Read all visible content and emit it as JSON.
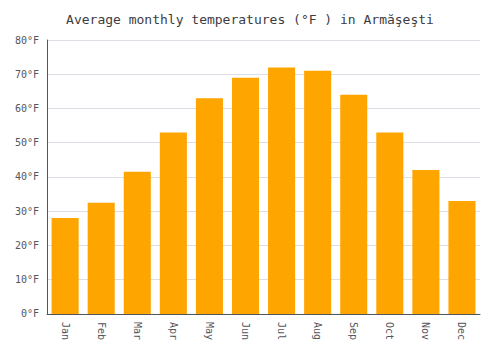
{
  "chart_data": {
    "type": "bar",
    "title": "Average monthly temperatures (°F ) in Armăşeşti",
    "categories": [
      "Jan",
      "Feb",
      "Mar",
      "Apr",
      "May",
      "Jun",
      "Jul",
      "Aug",
      "Sep",
      "Oct",
      "Nov",
      "Dec"
    ],
    "values": [
      28.0,
      32.5,
      41.5,
      53.0,
      63.0,
      69.0,
      72.0,
      71.0,
      64.0,
      53.0,
      42.0,
      33.0
    ],
    "color": "#FFA500",
    "ylim": [
      0,
      80
    ],
    "yticks": [
      {
        "value": 0,
        "label": "0°F"
      },
      {
        "value": 10,
        "label": "10°F"
      },
      {
        "value": 20,
        "label": "20°F"
      },
      {
        "value": 30,
        "label": "30°F"
      },
      {
        "value": 40,
        "label": "40°F"
      },
      {
        "value": 50,
        "label": "50°F"
      },
      {
        "value": 60,
        "label": "60°F"
      },
      {
        "value": 70,
        "label": "70°F"
      },
      {
        "value": 80,
        "label": "80°F"
      }
    ],
    "grid": true
  }
}
